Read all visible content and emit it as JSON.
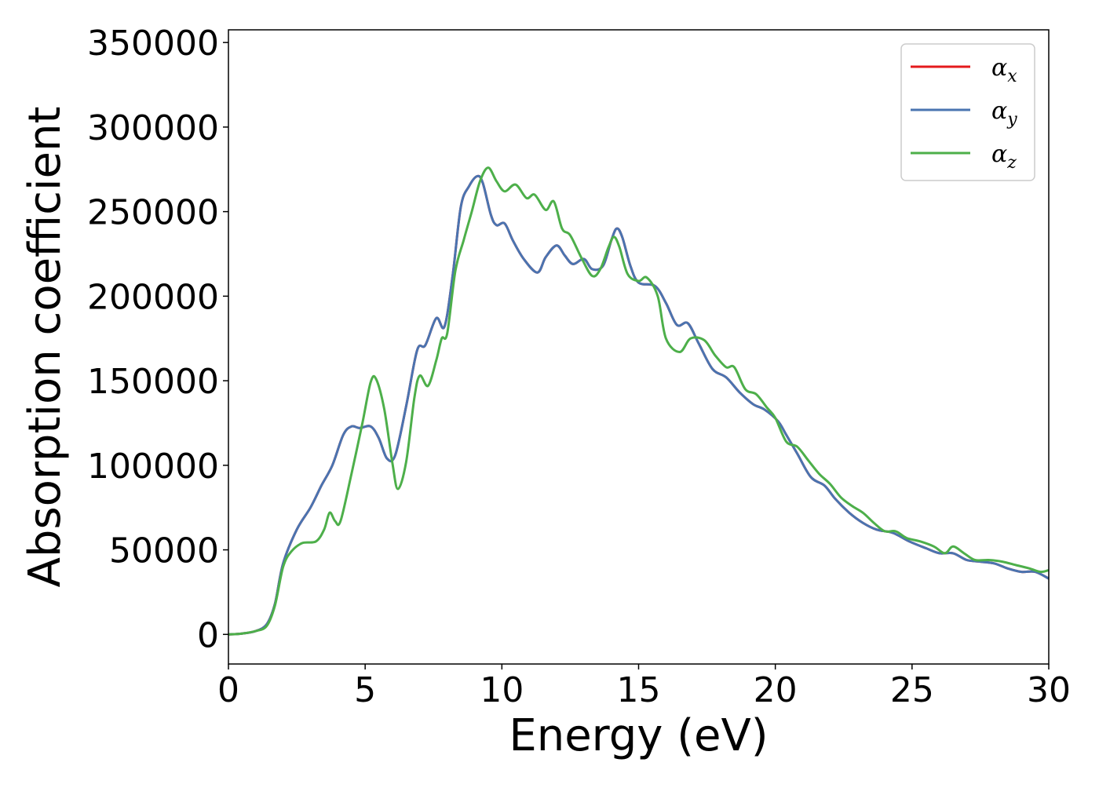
{
  "chart_data": {
    "type": "line",
    "title": "",
    "xlabel": "Energy (eV)",
    "ylabel": "Absorption coefficient",
    "xlim": [
      0,
      30
    ],
    "ylim": [
      -17500,
      357500
    ],
    "xticks": [
      0,
      5,
      10,
      15,
      20,
      25,
      30
    ],
    "yticks": [
      0,
      50000,
      100000,
      150000,
      200000,
      250000,
      300000,
      350000
    ],
    "xtick_labels": [
      "0",
      "5",
      "10",
      "15",
      "20",
      "25",
      "30"
    ],
    "ytick_labels": [
      "0",
      "50000",
      "100000",
      "150000",
      "200000",
      "250000",
      "300000",
      "350000"
    ],
    "grid": false,
    "legend_position": "top-right",
    "series": [
      {
        "name": "αx",
        "legend_base": "α",
        "legend_sub": "x",
        "color": "#e41a1c",
        "points": [
          [
            0,
            0
          ],
          [
            0.5,
            500
          ],
          [
            1,
            2000
          ],
          [
            1.4,
            6000
          ],
          [
            1.7,
            18000
          ],
          [
            2,
            42000
          ],
          [
            2.5,
            62000
          ],
          [
            3,
            75000
          ],
          [
            3.4,
            88000
          ],
          [
            3.8,
            100000
          ],
          [
            4.2,
            118000
          ],
          [
            4.5,
            123000
          ],
          [
            4.8,
            122000
          ],
          [
            5.2,
            123000
          ],
          [
            5.5,
            116000
          ],
          [
            5.8,
            104000
          ],
          [
            6.1,
            106000
          ],
          [
            6.5,
            135000
          ],
          [
            6.9,
            168000
          ],
          [
            7.2,
            171000
          ],
          [
            7.6,
            187000
          ],
          [
            7.9,
            182000
          ],
          [
            8.2,
            212000
          ],
          [
            8.5,
            253000
          ],
          [
            8.8,
            265000
          ],
          [
            9.1,
            271000
          ],
          [
            9.3,
            267000
          ],
          [
            9.6,
            248000
          ],
          [
            9.8,
            242000
          ],
          [
            10.1,
            243000
          ],
          [
            10.4,
            233000
          ],
          [
            10.8,
            222000
          ],
          [
            11.3,
            214000
          ],
          [
            11.6,
            223000
          ],
          [
            12,
            230000
          ],
          [
            12.3,
            224000
          ],
          [
            12.6,
            219000
          ],
          [
            13,
            222000
          ],
          [
            13.3,
            216000
          ],
          [
            13.7,
            218000
          ],
          [
            14,
            233000
          ],
          [
            14.2,
            240000
          ],
          [
            14.4,
            235000
          ],
          [
            14.7,
            218000
          ],
          [
            15,
            208000
          ],
          [
            15.6,
            206000
          ],
          [
            16,
            196000
          ],
          [
            16.4,
            183000
          ],
          [
            16.8,
            184000
          ],
          [
            17.2,
            172000
          ],
          [
            17.7,
            157000
          ],
          [
            18.2,
            152000
          ],
          [
            18.7,
            143000
          ],
          [
            19.2,
            136000
          ],
          [
            19.6,
            133000
          ],
          [
            20.1,
            126000
          ],
          [
            20.4,
            118000
          ],
          [
            20.8,
            107000
          ],
          [
            21.3,
            93000
          ],
          [
            21.8,
            88000
          ],
          [
            22.2,
            80000
          ],
          [
            22.7,
            72000
          ],
          [
            23.2,
            66000
          ],
          [
            23.7,
            62000
          ],
          [
            24.3,
            60000
          ],
          [
            24.9,
            55000
          ],
          [
            25.5,
            51000
          ],
          [
            26,
            48000
          ],
          [
            26.5,
            48000
          ],
          [
            27,
            44000
          ],
          [
            27.5,
            43000
          ],
          [
            28,
            42000
          ],
          [
            28.5,
            39000
          ],
          [
            29,
            37000
          ],
          [
            29.5,
            37000
          ],
          [
            30,
            33000
          ]
        ]
      },
      {
        "name": "αy",
        "legend_base": "α",
        "legend_sub": "y",
        "color": "#4a74b0",
        "points": [
          [
            0,
            0
          ],
          [
            0.5,
            500
          ],
          [
            1,
            2000
          ],
          [
            1.4,
            6000
          ],
          [
            1.7,
            18000
          ],
          [
            2,
            42000
          ],
          [
            2.5,
            62000
          ],
          [
            3,
            75000
          ],
          [
            3.4,
            88000
          ],
          [
            3.8,
            100000
          ],
          [
            4.2,
            118000
          ],
          [
            4.5,
            123000
          ],
          [
            4.8,
            122000
          ],
          [
            5.2,
            123000
          ],
          [
            5.5,
            116000
          ],
          [
            5.8,
            104000
          ],
          [
            6.1,
            106000
          ],
          [
            6.5,
            135000
          ],
          [
            6.9,
            168000
          ],
          [
            7.2,
            171000
          ],
          [
            7.6,
            187000
          ],
          [
            7.9,
            182000
          ],
          [
            8.2,
            212000
          ],
          [
            8.5,
            253000
          ],
          [
            8.8,
            265000
          ],
          [
            9.1,
            271000
          ],
          [
            9.3,
            267000
          ],
          [
            9.6,
            248000
          ],
          [
            9.8,
            242000
          ],
          [
            10.1,
            243000
          ],
          [
            10.4,
            233000
          ],
          [
            10.8,
            222000
          ],
          [
            11.3,
            214000
          ],
          [
            11.6,
            223000
          ],
          [
            12,
            230000
          ],
          [
            12.3,
            224000
          ],
          [
            12.6,
            219000
          ],
          [
            13,
            222000
          ],
          [
            13.3,
            216000
          ],
          [
            13.7,
            218000
          ],
          [
            14,
            233000
          ],
          [
            14.2,
            240000
          ],
          [
            14.4,
            235000
          ],
          [
            14.7,
            218000
          ],
          [
            15,
            208000
          ],
          [
            15.6,
            206000
          ],
          [
            16,
            196000
          ],
          [
            16.4,
            183000
          ],
          [
            16.8,
            184000
          ],
          [
            17.2,
            172000
          ],
          [
            17.7,
            157000
          ],
          [
            18.2,
            152000
          ],
          [
            18.7,
            143000
          ],
          [
            19.2,
            136000
          ],
          [
            19.6,
            133000
          ],
          [
            20.1,
            126000
          ],
          [
            20.4,
            118000
          ],
          [
            20.8,
            107000
          ],
          [
            21.3,
            93000
          ],
          [
            21.8,
            88000
          ],
          [
            22.2,
            80000
          ],
          [
            22.7,
            72000
          ],
          [
            23.2,
            66000
          ],
          [
            23.7,
            62000
          ],
          [
            24.3,
            60000
          ],
          [
            24.9,
            55000
          ],
          [
            25.5,
            51000
          ],
          [
            26,
            48000
          ],
          [
            26.5,
            48000
          ],
          [
            27,
            44000
          ],
          [
            27.5,
            43000
          ],
          [
            28,
            42000
          ],
          [
            28.5,
            39000
          ],
          [
            29,
            37000
          ],
          [
            29.5,
            37000
          ],
          [
            30,
            33000
          ]
        ]
      },
      {
        "name": "αz",
        "legend_base": "α",
        "legend_sub": "z",
        "color": "#4daf4a",
        "points": [
          [
            0,
            0
          ],
          [
            0.5,
            500
          ],
          [
            1,
            2000
          ],
          [
            1.4,
            5000
          ],
          [
            1.7,
            17000
          ],
          [
            2,
            40000
          ],
          [
            2.3,
            49000
          ],
          [
            2.7,
            54000
          ],
          [
            3.2,
            55000
          ],
          [
            3.5,
            62000
          ],
          [
            3.7,
            72000
          ],
          [
            3.9,
            67000
          ],
          [
            4.1,
            67000
          ],
          [
            4.5,
            95000
          ],
          [
            4.9,
            125000
          ],
          [
            5.2,
            149000
          ],
          [
            5.4,
            151000
          ],
          [
            5.7,
            133000
          ],
          [
            6,
            101000
          ],
          [
            6.2,
            86000
          ],
          [
            6.5,
            102000
          ],
          [
            6.8,
            140000
          ],
          [
            7,
            153000
          ],
          [
            7.3,
            147000
          ],
          [
            7.6,
            162000
          ],
          [
            7.8,
            175000
          ],
          [
            8,
            178000
          ],
          [
            8.3,
            215000
          ],
          [
            8.6,
            233000
          ],
          [
            8.9,
            250000
          ],
          [
            9.2,
            268000
          ],
          [
            9.5,
            276000
          ],
          [
            9.8,
            268000
          ],
          [
            10.1,
            262000
          ],
          [
            10.5,
            266000
          ],
          [
            10.9,
            258000
          ],
          [
            11.2,
            260000
          ],
          [
            11.6,
            251000
          ],
          [
            11.9,
            256000
          ],
          [
            12.2,
            240000
          ],
          [
            12.5,
            236000
          ],
          [
            12.9,
            223000
          ],
          [
            13.3,
            212000
          ],
          [
            13.6,
            216000
          ],
          [
            13.9,
            229000
          ],
          [
            14.1,
            235000
          ],
          [
            14.3,
            229000
          ],
          [
            14.6,
            213000
          ],
          [
            15,
            209000
          ],
          [
            15.3,
            211000
          ],
          [
            15.7,
            200000
          ],
          [
            16,
            175000
          ],
          [
            16.5,
            167000
          ],
          [
            16.9,
            175000
          ],
          [
            17.4,
            174000
          ],
          [
            17.8,
            165000
          ],
          [
            18.2,
            158000
          ],
          [
            18.5,
            158000
          ],
          [
            18.9,
            145000
          ],
          [
            19.3,
            142000
          ],
          [
            19.7,
            134000
          ],
          [
            20,
            128000
          ],
          [
            20.4,
            114000
          ],
          [
            20.8,
            111000
          ],
          [
            21.2,
            103000
          ],
          [
            21.6,
            95000
          ],
          [
            22,
            89000
          ],
          [
            22.4,
            81000
          ],
          [
            22.8,
            76000
          ],
          [
            23.2,
            72000
          ],
          [
            23.6,
            66000
          ],
          [
            24,
            61000
          ],
          [
            24.4,
            61000
          ],
          [
            24.8,
            57000
          ],
          [
            25.3,
            55000
          ],
          [
            25.8,
            52000
          ],
          [
            26.2,
            48000
          ],
          [
            26.5,
            52000
          ],
          [
            26.9,
            48000
          ],
          [
            27.3,
            44000
          ],
          [
            27.8,
            44000
          ],
          [
            28.3,
            43000
          ],
          [
            28.8,
            41000
          ],
          [
            29.3,
            39000
          ],
          [
            29.7,
            37000
          ],
          [
            30,
            38000
          ]
        ]
      }
    ]
  }
}
